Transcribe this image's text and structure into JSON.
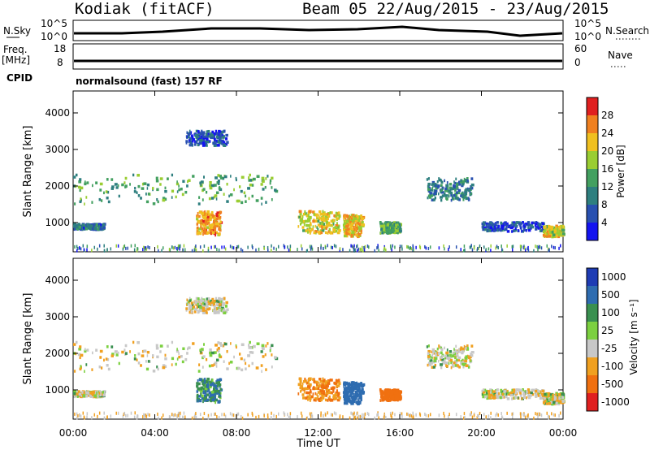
{
  "header": {
    "station": "Kodiak (fitACF)",
    "beam_dates": "Beam 05 22/Aug/2015 - 23/Aug/2015"
  },
  "strip_nsky": {
    "left_label": "N.Sky",
    "right_label": "N.Search",
    "left_ticks": [
      "10^5",
      "10^0"
    ],
    "right_ticks": [
      "10^5",
      "10^0"
    ]
  },
  "strip_freq": {
    "left_label_1": "Freq.",
    "left_label_2": "[MHz]",
    "right_label": "Nave",
    "left_ticks": [
      "18",
      "8"
    ],
    "right_ticks": [
      "60",
      "0"
    ],
    "cpid_label": "CPID",
    "cpid_value": "normalsound (fast) 157 RF"
  },
  "panels": {
    "ylabel": "Slant Range [km]",
    "xlabel": "Time UT",
    "x_ticks": [
      "00:00",
      "04:00",
      "08:00",
      "12:00",
      "16:00",
      "20:00",
      "00:00"
    ],
    "y_ticks": [
      "1000",
      "2000",
      "3000",
      "4000"
    ],
    "power_colorbar": {
      "label": "Power [dB]",
      "ticks": [
        "4",
        "8",
        "12",
        "16",
        "20",
        "24",
        "28"
      ],
      "colors": [
        "#1414f0",
        "#2850b0",
        "#2e7f7f",
        "#43a060",
        "#9acd32",
        "#f0c020",
        "#f08020",
        "#e02020"
      ]
    },
    "velocity_colorbar": {
      "label": "Velocity [m s⁻¹]",
      "ticks": [
        "1000",
        "500",
        "100",
        "25",
        "-25",
        "-100",
        "-500",
        "-1000"
      ],
      "colors": [
        "#1e3cb4",
        "#2e6cb0",
        "#3a9050",
        "#7cd040",
        "#c8c8c8",
        "#f0a020",
        "#f07010",
        "#e02020"
      ]
    }
  },
  "chart_data": {
    "type": "heatmap",
    "title": "Kodiak (fitACF) Beam 05 22/Aug/2015 - 23/Aug/2015",
    "xlabel": "Time UT",
    "ylabel": "Slant Range [km]",
    "xlim": [
      "00:00",
      "24:00"
    ],
    "ylim": [
      200,
      4600
    ],
    "echo_regions_hours_km": [
      {
        "t0": 0.0,
        "t1": 10.0,
        "r0": 1500,
        "r1": 2300,
        "power_db": 14,
        "velocity": 0
      },
      {
        "t0": 0.0,
        "t1": 1.5,
        "r0": 800,
        "r1": 950,
        "power_db": 8,
        "velocity": 0
      },
      {
        "t0": 5.5,
        "t1": 7.5,
        "r0": 3100,
        "r1": 3500,
        "power_db": 6,
        "velocity": 0
      },
      {
        "t0": 6.0,
        "t1": 7.2,
        "r0": 650,
        "r1": 1300,
        "power_db": 24,
        "velocity": 100
      },
      {
        "t0": 11.0,
        "t1": 13.0,
        "r0": 700,
        "r1": 1300,
        "power_db": 20,
        "velocity": -100
      },
      {
        "t0": 13.2,
        "t1": 14.2,
        "r0": 600,
        "r1": 1200,
        "power_db": 22,
        "velocity": 200
      },
      {
        "t0": 15.0,
        "t1": 16.0,
        "r0": 700,
        "r1": 1000,
        "power_db": 14,
        "velocity": -200
      },
      {
        "t0": 17.3,
        "t1": 19.5,
        "r0": 1600,
        "r1": 2200,
        "power_db": 10,
        "velocity": 0
      },
      {
        "t0": 20.0,
        "t1": 23.0,
        "r0": 750,
        "r1": 1000,
        "power_db": 6,
        "velocity": 0
      },
      {
        "t0": 23.0,
        "t1": 24.0,
        "r0": 600,
        "r1": 900,
        "power_db": 20,
        "velocity": 0
      }
    ]
  }
}
